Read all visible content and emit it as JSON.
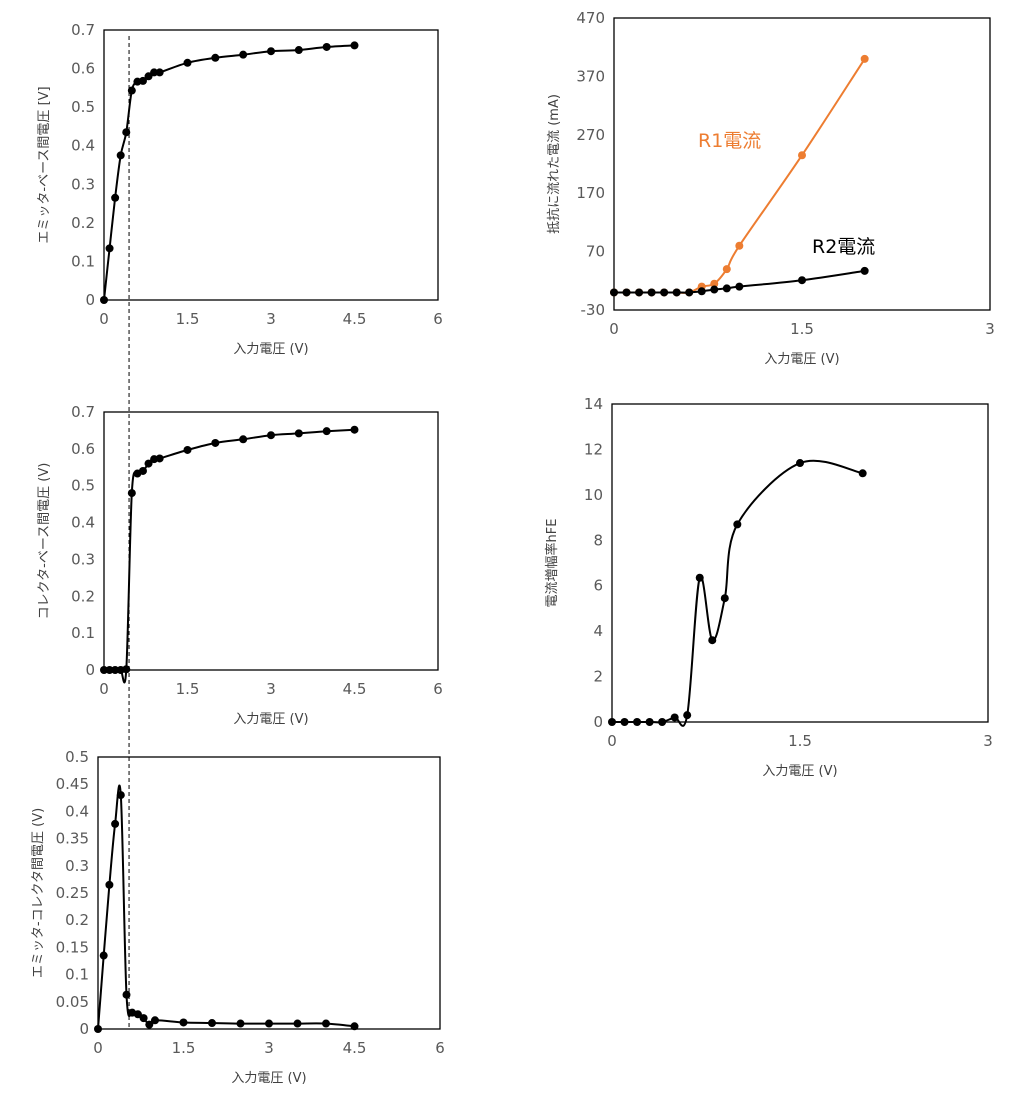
{
  "chart_data": [
    {
      "type": "scatter",
      "xlabel": "入力電圧 (V)",
      "ylabel": "エミッタ-ベース間電圧 [V]",
      "xlim": [
        0,
        6
      ],
      "ylim": [
        0,
        0.7
      ],
      "xticks": [
        0,
        1.5,
        3,
        4.5,
        6
      ],
      "yticks": [
        0,
        0.1,
        0.2,
        0.3,
        0.4,
        0.5,
        0.6,
        0.7
      ],
      "ytick_labels": [
        "0",
        "0.1",
        "0.2",
        "0.3",
        "0.4",
        "0.5",
        "0.6",
        "0.7"
      ],
      "grid": false,
      "vline_x": 0.45,
      "series": [
        {
          "color": "#000000",
          "x": [
            0,
            0.1,
            0.2,
            0.3,
            0.4,
            0.5,
            0.6,
            0.7,
            0.8,
            0.9,
            1.0,
            1.5,
            2.0,
            2.5,
            3.0,
            3.5,
            4.0,
            4.5
          ],
          "y": [
            0,
            0.134,
            0.265,
            0.375,
            0.435,
            0.543,
            0.566,
            0.568,
            0.58,
            0.59,
            0.59,
            0.615,
            0.628,
            0.636,
            0.645,
            0.648,
            0.656,
            0.66
          ]
        }
      ]
    },
    {
      "type": "scatter",
      "xlabel": "入力電圧 (V)",
      "ylabel": "抵抗に流れた電流 (mA)",
      "xlim": [
        0,
        3
      ],
      "ylim": [
        -30,
        470
      ],
      "xticks": [
        0,
        1.5,
        3
      ],
      "yticks": [
        -30,
        70,
        170,
        270,
        370,
        470
      ],
      "ytick_labels": [
        "-30",
        "70",
        "170",
        "270",
        "370",
        "470"
      ],
      "grid": false,
      "series": [
        {
          "name": "R1電流",
          "color": "#ED7D31",
          "x": [
            0,
            0.1,
            0.2,
            0.3,
            0.4,
            0.5,
            0.6,
            0.7,
            0.8,
            0.9,
            1.0,
            1.5,
            2.0
          ],
          "y": [
            0,
            0,
            0,
            0,
            0,
            0,
            0,
            10,
            15,
            40,
            80,
            235,
            400
          ]
        },
        {
          "name": "R2電流",
          "color": "#000000",
          "x": [
            0,
            0.1,
            0.2,
            0.3,
            0.4,
            0.5,
            0.6,
            0.7,
            0.8,
            0.9,
            1.0,
            1.5,
            2.0
          ],
          "y": [
            0,
            0,
            0,
            0,
            0,
            0,
            0,
            2,
            5,
            7,
            10,
            21,
            37
          ]
        }
      ]
    },
    {
      "type": "scatter",
      "xlabel": "入力電圧 (V)",
      "ylabel": "コレクタ-ベース間電圧 (V)",
      "xlim": [
        0,
        6
      ],
      "ylim": [
        0,
        0.7
      ],
      "xticks": [
        0,
        1.5,
        3,
        4.5,
        6
      ],
      "yticks": [
        0,
        0.1,
        0.2,
        0.3,
        0.4,
        0.5,
        0.6,
        0.7
      ],
      "ytick_labels": [
        "0",
        "0.1",
        "0.2",
        "0.3",
        "0.4",
        "0.5",
        "0.6",
        "0.7"
      ],
      "grid": false,
      "vline_x": 0.45,
      "series": [
        {
          "color": "#000000",
          "x": [
            0,
            0.1,
            0.2,
            0.3,
            0.4,
            0.5,
            0.6,
            0.7,
            0.8,
            0.9,
            1.0,
            1.5,
            2.0,
            2.5,
            3.0,
            3.5,
            4.0,
            4.5
          ],
          "y": [
            0,
            0,
            0,
            0,
            0.002,
            0.48,
            0.533,
            0.54,
            0.56,
            0.572,
            0.574,
            0.597,
            0.616,
            0.626,
            0.637,
            0.642,
            0.648,
            0.652
          ]
        }
      ]
    },
    {
      "type": "scatter",
      "xlabel": "入力電圧 (V)",
      "ylabel": "電流増幅率hFE",
      "xlim": [
        0,
        3
      ],
      "ylim": [
        0,
        14
      ],
      "xticks": [
        0,
        1.5,
        3
      ],
      "yticks": [
        0,
        2,
        4,
        6,
        8,
        10,
        12,
        14
      ],
      "ytick_labels": [
        "0",
        "2",
        "4",
        "6",
        "8",
        "10",
        "12",
        "14"
      ],
      "grid": false,
      "series": [
        {
          "color": "#000000",
          "x": [
            0,
            0.1,
            0.2,
            0.3,
            0.4,
            0.5,
            0.6,
            0.7,
            0.8,
            0.9,
            1.0,
            1.5,
            2.0
          ],
          "y": [
            0,
            0,
            0,
            0,
            0,
            0.2,
            0.3,
            6.35,
            3.6,
            5.45,
            8.7,
            11.4,
            10.95
          ]
        }
      ]
    },
    {
      "type": "scatter",
      "xlabel": "入力電圧 (V)",
      "ylabel": "エミッタ-コレクタ間電圧 (V)",
      "xlim": [
        0,
        6
      ],
      "ylim": [
        0,
        0.5
      ],
      "xticks": [
        0,
        1.5,
        3,
        4.5,
        6
      ],
      "yticks": [
        0,
        0.05,
        0.1,
        0.15,
        0.2,
        0.25,
        0.3,
        0.35,
        0.4,
        0.45,
        0.5
      ],
      "ytick_labels": [
        "0",
        "0.05",
        "0.1",
        "0.15",
        "0.2",
        "0.25",
        "0.3",
        "0.35",
        "0.4",
        "0.45",
        "0.5"
      ],
      "grid": false,
      "vline_x": 0.5,
      "series": [
        {
          "color": "#000000",
          "x": [
            0,
            0.1,
            0.2,
            0.3,
            0.4,
            0.5,
            0.6,
            0.7,
            0.8,
            0.9,
            1.0,
            1.5,
            2.0,
            2.5,
            3.0,
            3.5,
            4.0,
            4.5
          ],
          "y": [
            0,
            0.135,
            0.265,
            0.377,
            0.43,
            0.063,
            0.03,
            0.027,
            0.02,
            0.008,
            0.016,
            0.012,
            0.011,
            0.01,
            0.01,
            0.01,
            0.01,
            0.005
          ]
        }
      ]
    }
  ]
}
